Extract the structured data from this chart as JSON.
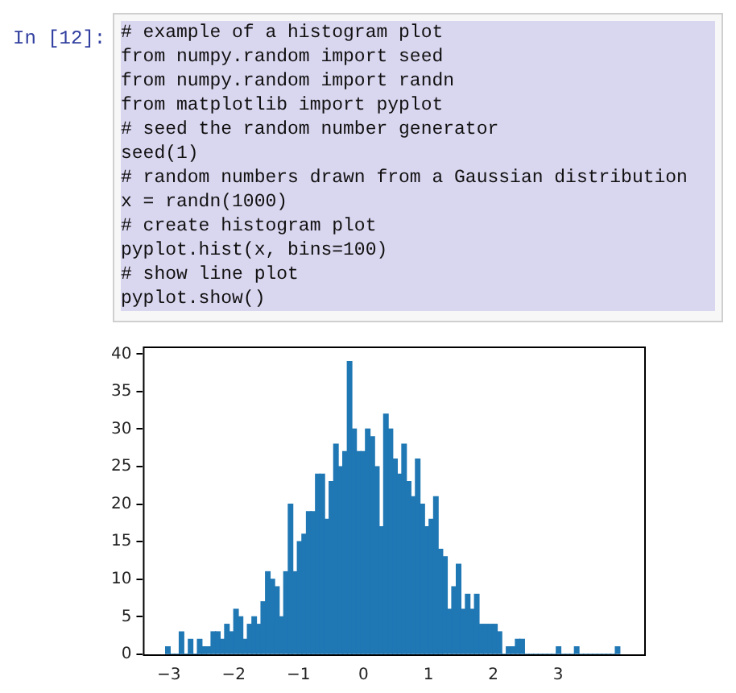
{
  "chart_data": {
    "type": "histogram",
    "annotations": [
      "In [12]:",
      "# example of a histogram plot",
      "from numpy.random import seed",
      "from numpy.random import randn",
      "from matplotlib import pyplot",
      "# seed the random number generator",
      "seed(1)",
      "# random numbers drawn from a Gaussian distribution",
      "x = randn(1000)",
      "# create histogram plot",
      "pyplot.hist(x, bins=100)",
      "# show line plot",
      "pyplot.show()"
    ],
    "bins": [
      -3.05,
      -2.98,
      -2.91,
      -2.84,
      -2.77,
      -2.7,
      -2.63,
      -2.56,
      -2.49,
      -2.42,
      -2.35,
      -2.28,
      -2.21,
      -2.14,
      -2.07,
      -2.0,
      -1.93,
      -1.86,
      -1.79,
      -1.72,
      -1.65,
      -1.58,
      -1.51,
      -1.44,
      -1.37,
      -1.3,
      -1.23,
      -1.16,
      -1.09,
      -1.02,
      -0.95,
      -0.88,
      -0.81,
      -0.74,
      -0.67,
      -0.6,
      -0.53,
      -0.46,
      -0.39,
      -0.32,
      -0.25,
      -0.18,
      -0.11,
      -0.04,
      0.03,
      0.1,
      0.17,
      0.24,
      0.31,
      0.38,
      0.45,
      0.52,
      0.59,
      0.66,
      0.73,
      0.8,
      0.87,
      0.94,
      1.01,
      1.08,
      1.15,
      1.22,
      1.29,
      1.36,
      1.43,
      1.5,
      1.57,
      1.64,
      1.71,
      1.78,
      1.85,
      1.92,
      1.99,
      2.06,
      2.13,
      2.2,
      2.27,
      2.34,
      2.41,
      2.48,
      2.55,
      2.62,
      2.69,
      2.76,
      2.83,
      2.9,
      2.97,
      3.04,
      3.11,
      3.18,
      3.25,
      3.32,
      3.39,
      3.46,
      3.53,
      3.6,
      3.67,
      3.74,
      3.81,
      3.88,
      3.95
    ],
    "values": [
      1,
      0,
      0,
      3,
      0,
      2,
      0,
      2,
      1,
      1,
      3,
      3,
      2,
      4,
      3,
      6,
      5,
      2,
      4,
      5,
      4,
      7,
      11,
      10,
      9,
      5,
      11,
      20,
      11,
      15,
      16,
      19,
      19,
      24,
      24,
      18,
      23,
      28,
      25,
      27,
      39,
      30,
      27,
      27,
      30,
      29,
      25,
      17,
      32,
      30,
      26,
      24,
      28,
      23,
      21,
      26,
      20,
      17,
      18,
      21,
      14,
      13,
      6,
      9,
      12,
      6,
      8,
      6,
      8,
      4,
      4,
      4,
      4,
      3,
      0,
      1,
      1,
      2,
      2,
      0,
      0,
      0,
      0,
      0,
      0,
      0,
      1,
      0,
      0,
      0,
      1,
      0,
      0,
      0,
      0,
      0,
      0,
      0,
      0,
      1
    ],
    "color": "#1f77b4",
    "xlim": [
      -3.4,
      4.35
    ],
    "xticks": [
      -3,
      -2,
      -1,
      0,
      1,
      2,
      3
    ],
    "ylim": [
      0,
      41
    ],
    "yticks": [
      0,
      5,
      10,
      15,
      20,
      25,
      30,
      35,
      40
    ],
    "grid": false,
    "legend": false
  }
}
